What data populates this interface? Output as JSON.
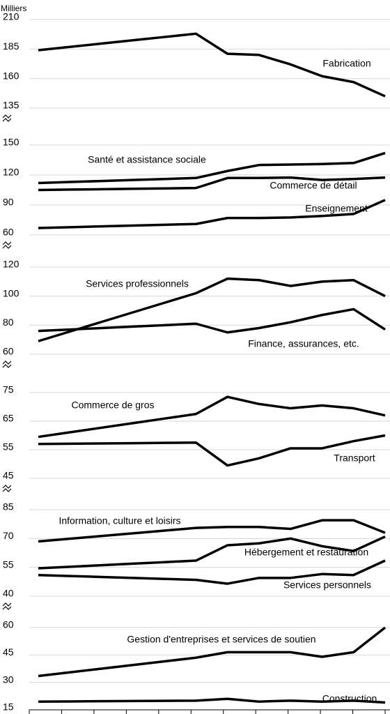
{
  "chart_data": [
    {
      "type": "line",
      "y_label": "Milliers",
      "categories": [
        null,
        null,
        null,
        null,
        null,
        null,
        null,
        null,
        null,
        null,
        null,
        null
      ],
      "ylim": [
        135,
        210
      ],
      "yticks": [
        135,
        160,
        185,
        210
      ],
      "grid": true,
      "series": [
        {
          "name": "Fabrication",
          "color": "#000000",
          "values": [
            184,
            186.8,
            189.6,
            192.4,
            195.2,
            198,
            181,
            180,
            172,
            162,
            157,
            145
          ]
        }
      ]
    },
    {
      "type": "line",
      "categories": [
        null,
        null,
        null,
        null,
        null,
        null,
        null,
        null,
        null,
        null,
        null,
        null
      ],
      "ylim": [
        60,
        150
      ],
      "yticks": [
        60,
        90,
        120,
        150
      ],
      "grid": true,
      "series": [
        {
          "name": "Santé et assistance sociale",
          "color": "#000000",
          "values": [
            112,
            113,
            114,
            115,
            116,
            117,
            124,
            130,
            130.5,
            131,
            132,
            142
          ]
        },
        {
          "name": "Commerce de détail",
          "color": "#000000",
          "values": [
            105,
            105.4,
            105.8,
            106.2,
            106.6,
            107,
            117,
            117,
            117.5,
            115,
            116,
            117.5
          ]
        },
        {
          "name": "Enseignement",
          "color": "#000000",
          "values": [
            67,
            67.8,
            68.6,
            69.4,
            70.2,
            71,
            77,
            77,
            77.5,
            79,
            81,
            95
          ]
        }
      ]
    },
    {
      "type": "line",
      "categories": [
        null,
        null,
        null,
        null,
        null,
        null,
        null,
        null,
        null,
        null,
        null,
        null
      ],
      "ylim": [
        60,
        120
      ],
      "yticks": [
        60,
        80,
        100,
        120
      ],
      "grid": true,
      "series": [
        {
          "name": "Services professionnels",
          "color": "#000000",
          "values": [
            69,
            75.6,
            82.2,
            88.8,
            95.4,
            102,
            112,
            111,
            107,
            110,
            111,
            100
          ]
        },
        {
          "name": "Finance, assurances, etc.",
          "color": "#000000",
          "values": [
            76,
            77,
            78,
            79,
            80,
            81,
            75,
            78,
            82,
            87,
            91,
            77
          ]
        }
      ]
    },
    {
      "type": "line",
      "categories": [
        null,
        null,
        null,
        null,
        null,
        null,
        null,
        null,
        null,
        null,
        null,
        null
      ],
      "ylim": [
        45,
        75
      ],
      "yticks": [
        45,
        55,
        65,
        75
      ],
      "grid": true,
      "series": [
        {
          "name": "Commerce de gros",
          "color": "#000000",
          "values": [
            59.5,
            61.1,
            62.7,
            64.3,
            65.9,
            67.5,
            73.5,
            71,
            69.5,
            70.5,
            69.5,
            67
          ]
        },
        {
          "name": "Transport",
          "color": "#000000",
          "values": [
            57,
            57.1,
            57.2,
            57.3,
            57.4,
            57.5,
            49.5,
            52,
            55.5,
            55.5,
            58,
            60
          ]
        }
      ]
    },
    {
      "type": "line",
      "categories": [
        null,
        null,
        null,
        null,
        null,
        null,
        null,
        null,
        null,
        null,
        null,
        null
      ],
      "ylim": [
        40,
        85
      ],
      "yticks": [
        40,
        55,
        70,
        85
      ],
      "grid": true,
      "series": [
        {
          "name": "Information, culture et loisirs",
          "color": "#000000",
          "values": [
            68.5,
            69.9,
            71.3,
            72.7,
            74.1,
            75.5,
            76,
            76,
            75,
            79.5,
            79.5,
            73
          ]
        },
        {
          "name": "Hébergement et restauration",
          "color": "#000000",
          "values": [
            54.5,
            55.3,
            56.1,
            56.9,
            57.7,
            58.5,
            66.5,
            67.5,
            70,
            66,
            63.5,
            71
          ]
        },
        {
          "name": "Services personnels",
          "color": "#000000",
          "values": [
            51,
            50.5,
            50,
            49.5,
            49,
            48.5,
            46.5,
            49.5,
            49.5,
            51.5,
            51,
            58.5
          ]
        }
      ]
    },
    {
      "type": "line",
      "categories": [
        null,
        null,
        null,
        null,
        null,
        null,
        null,
        null,
        null,
        null,
        null,
        null
      ],
      "ylim": [
        15,
        60
      ],
      "yticks": [
        15,
        30,
        45,
        60
      ],
      "grid": true,
      "series": [
        {
          "name": "Gestion d'entreprises et services de soutien",
          "color": "#000000",
          "values": [
            33.5,
            35.5,
            37.5,
            39.5,
            41.5,
            43.5,
            46.5,
            46.5,
            46.5,
            44,
            46.5,
            60
          ]
        },
        {
          "name": "Construction",
          "color": "#000000",
          "values": [
            19.5,
            19.6,
            19.7,
            19.8,
            19.9,
            20,
            21,
            19.5,
            20,
            19.5,
            20,
            19
          ]
        }
      ]
    }
  ]
}
